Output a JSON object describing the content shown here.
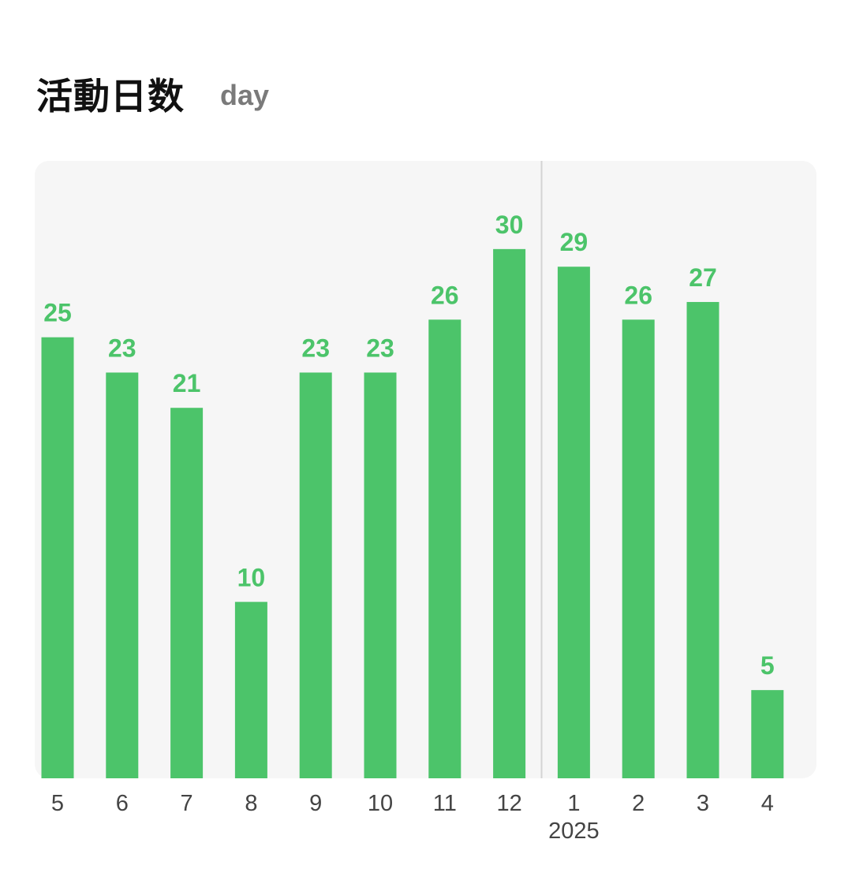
{
  "chart_data": {
    "type": "bar",
    "title": "活動日数",
    "unit": "day",
    "categories": [
      "5",
      "6",
      "7",
      "8",
      "9",
      "10",
      "11",
      "12",
      "1",
      "2",
      "3",
      "4"
    ],
    "values": [
      25,
      23,
      21,
      10,
      23,
      23,
      26,
      30,
      29,
      26,
      27,
      5
    ],
    "year_marker": {
      "before_category": "1",
      "label": "2025"
    },
    "ylim": [
      0,
      35
    ],
    "grid": false,
    "legend": "none",
    "colors": {
      "bar": "#4cc46a",
      "label": "#4cc46a",
      "panel": "#f6f6f6",
      "divider": "#d4d4d4"
    }
  }
}
